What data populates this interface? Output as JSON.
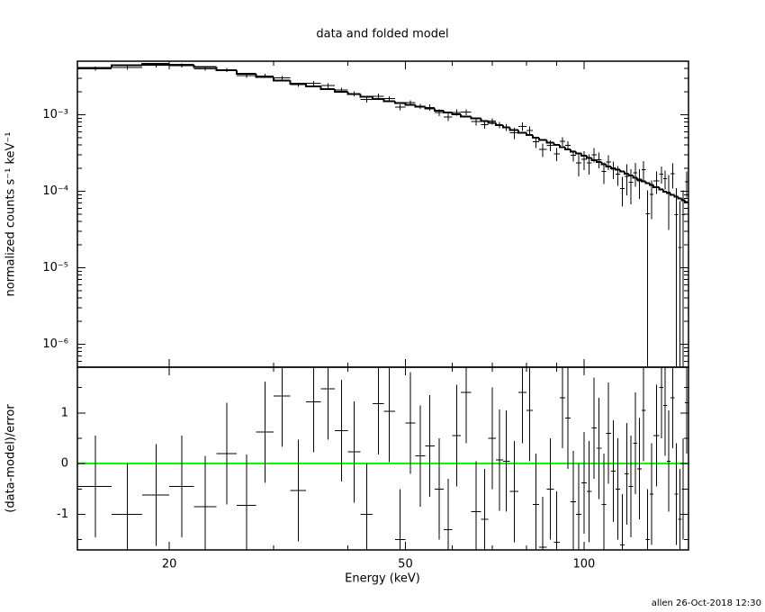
{
  "chart_data": {
    "type": "spectrum",
    "title": "data and folded model",
    "xlabel": "Energy (keV)",
    "footer": "allen 26-Oct-2018 12:30",
    "log_x": true,
    "xlim": [
      14,
      150
    ],
    "xticks": [
      20,
      50,
      100
    ],
    "minor_xticks": [
      30,
      40,
      60,
      70,
      80,
      90
    ],
    "bins": [
      14,
      16,
      18,
      20,
      22,
      24,
      26,
      28,
      30,
      32,
      34,
      36,
      38,
      40,
      42,
      44,
      46,
      48,
      50,
      52,
      54,
      56,
      58,
      60,
      62,
      64.5,
      67,
      69,
      71,
      73,
      75,
      77.5,
      80,
      82,
      84,
      86.5,
      89,
      91,
      93,
      95,
      97,
      99,
      101,
      103,
      105,
      107,
      109,
      111,
      113,
      115,
      117,
      119,
      121,
      123,
      125,
      127,
      129,
      131,
      134,
      136,
      138,
      140,
      142,
      144,
      146,
      148,
      150
    ],
    "panels": [
      {
        "ylabel": "normalized counts s⁻¹ keV⁻¹",
        "log_y": true,
        "ylim": [
          5e-07,
          0.005
        ],
        "yticks": [
          {
            "value": 1e-06,
            "label": "10⁻⁶"
          },
          {
            "value": 1e-05,
            "label": "10⁻⁵"
          },
          {
            "value": 0.0001,
            "label": "10⁻⁴"
          },
          {
            "value": 0.001,
            "label": "10⁻³"
          }
        ],
        "minor_yticks": [
          6e-07,
          7e-07,
          8e-07,
          9e-07,
          2e-06,
          3e-06,
          4e-06,
          5e-06,
          6e-06,
          7e-06,
          8e-06,
          9e-06,
          2e-05,
          3e-05,
          4e-05,
          5e-05,
          6e-05,
          7e-05,
          8e-05,
          9e-05,
          0.0002,
          0.0003,
          0.0004,
          0.0005,
          0.0006,
          0.0007,
          0.0008,
          0.0009,
          0.002,
          0.003,
          0.004
        ],
        "color": "#000000",
        "values": [
          0.00399,
          0.00414,
          0.00443,
          0.00438,
          0.00399,
          0.00385,
          0.00323,
          0.00321,
          0.00302,
          0.00247,
          0.00258,
          0.0024,
          0.0021,
          0.00188,
          0.00158,
          0.00175,
          0.00162,
          0.00125,
          0.00143,
          0.00129,
          0.00124,
          0.00107,
          0.00093,
          0.00107,
          0.00108,
          0.00081,
          0.00074,
          0.00082,
          0.000735,
          0.000683,
          0.000578,
          0.000702,
          0.000625,
          0.00044,
          0.00035,
          0.000398,
          0.000307,
          0.000448,
          0.000397,
          0.000293,
          0.000233,
          0.000262,
          0.000233,
          0.0003,
          0.000258,
          0.00018,
          0.000242,
          0.000193,
          0.000166,
          0.000108,
          0.000156,
          0.000131,
          0.000174,
          0.000136,
          0.000192,
          5.1e-05,
          9.1e-05,
          0.000137,
          0.000168,
          0.000145,
          9.7e-05,
          0.00017,
          4.9e-05,
          1.84e-05,
          4.9e-05,
          0.000132
        ],
        "errors": [
          0.00025,
          0.00026,
          0.00028,
          0.00027,
          0.00025,
          0.00023,
          0.0002,
          0.00019,
          0.00017,
          0.00015,
          0.00019,
          0.00017,
          0.00016,
          0.00015,
          0.00014,
          0.00013,
          0.00012,
          0.00011,
          0.00011,
          0.0001,
          0.00012,
          0.00011,
          0.00011,
          0.0001,
          9.5e-05,
          8.9e-05,
          8.3e-05,
          7.8e-05,
          7.3e-05,
          6.8e-05,
          9.5e-05,
          8.7e-05,
          8.1e-05,
          7.5e-05,
          7e-05,
          6.5e-05,
          6e-05,
          5.6e-05,
          5.3e-05,
          5e-05,
          7.8e-05,
          7.3e-05,
          6.8e-05,
          6.4e-05,
          6e-05,
          5.6e-05,
          5.3e-05,
          5e-05,
          4.8e-05,
          4.5e-05,
          6.8e-05,
          6.4e-05,
          6e-05,
          5.7e-05,
          5.4e-05,
          5.1e-05,
          4.8e-05,
          4.5e-05,
          4.2e-05,
          4e-05,
          6.6e-05,
          6.2e-05,
          6e-05,
          5.6e-05,
          5.3e-05,
          5e-05
        ],
        "model": [
          0.0041,
          0.0044,
          0.0046,
          0.0045,
          0.0042,
          0.0038,
          0.0034,
          0.0031,
          0.0028,
          0.00255,
          0.00235,
          0.00215,
          0.002,
          0.00185,
          0.00172,
          0.0016,
          0.0015,
          0.00142,
          0.00134,
          0.00127,
          0.0012,
          0.00113,
          0.00107,
          0.00101,
          0.00095,
          0.00089,
          0.00083,
          0.00078,
          0.00073,
          0.00068,
          0.00063,
          0.00058,
          0.00054,
          0.0005,
          0.000465,
          0.00043,
          0.0004,
          0.000375,
          0.00035,
          0.00033,
          0.00031,
          0.00029,
          0.00027,
          0.000255,
          0.00024,
          0.000225,
          0.00021,
          0.0002,
          0.00019,
          0.00018,
          0.00017,
          0.00016,
          0.00015,
          0.000142,
          0.000135,
          0.000128,
          0.00012,
          0.000112,
          0.000105,
          9.9e-05,
          9.4e-05,
          8.9e-05,
          8.5e-05,
          8e-05,
          7.6e-05,
          7.2e-05
        ],
        "model_color": "#000000"
      },
      {
        "ylabel": "(data-model)/error",
        "log_y": false,
        "ylim": [
          -1.7,
          1.9
        ],
        "yticks": [
          -1,
          0,
          1
        ],
        "minor_yticks": [
          -1.5,
          -0.5,
          0.5,
          1.5
        ],
        "color": "#000000",
        "reference_line": {
          "value": 0,
          "color": "#00ff00"
        },
        "values": [
          -0.45,
          -1.0,
          -0.62,
          -0.45,
          -0.85,
          0.2,
          -0.82,
          0.62,
          1.33,
          -0.53,
          1.22,
          1.47,
          0.65,
          0.23,
          -1.0,
          1.18,
          1.03,
          -1.5,
          0.8,
          0.15,
          0.35,
          -0.5,
          -1.3,
          0.55,
          1.4,
          -0.95,
          -1.1,
          0.5,
          0.07,
          0.05,
          -0.55,
          1.4,
          1.05,
          -0.8,
          -1.65,
          -0.5,
          -1.55,
          1.3,
          0.9,
          -0.75,
          -1.0,
          -0.38,
          -0.55,
          0.7,
          0.3,
          -0.8,
          0.6,
          -0.15,
          -0.5,
          -1.6,
          -0.2,
          -0.45,
          0.4,
          -0.1,
          1.05,
          -1.5,
          -0.6,
          0.55,
          1.5,
          1.15,
          0.05,
          1.3,
          -0.6,
          -1.1,
          -0.5,
          1.2
        ],
        "errors": [
          1,
          1,
          1,
          1,
          1,
          1,
          1,
          1,
          1,
          1,
          1,
          1,
          1,
          1,
          1,
          1,
          1,
          1,
          1,
          1,
          1,
          1,
          1,
          1,
          1,
          1,
          1,
          1,
          1,
          1,
          1,
          1,
          1,
          1,
          1,
          1,
          1,
          1,
          1,
          1,
          1,
          1,
          1,
          1,
          1,
          1,
          1,
          1,
          1,
          1,
          1,
          1,
          1,
          1,
          1,
          1,
          1,
          1,
          1,
          1,
          1,
          1,
          1,
          1,
          1,
          1
        ]
      }
    ]
  }
}
